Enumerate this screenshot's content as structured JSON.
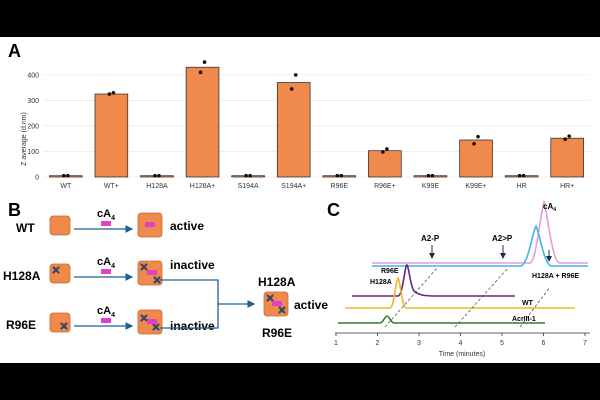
{
  "panels": {
    "a": "A",
    "b": "B",
    "c": "C"
  },
  "colors": {
    "bar": "#ef8a4c",
    "protein": "#ef8a4c",
    "ligand": "#e040c8",
    "arrow": "#1d5f96",
    "mutation": "#2f4a6b"
  },
  "chart_data": {
    "type": "bar",
    "ylabel": "Z average (d.nm)",
    "ylim": [
      0,
      470
    ],
    "yticks": [
      0,
      100,
      200,
      300,
      400
    ],
    "categories": [
      "WT",
      "WT+",
      "H128A",
      "H128A+",
      "S194A",
      "S194A+",
      "R96E",
      "R96E+",
      "K99E",
      "K99E+",
      "HR",
      "HR+"
    ],
    "values": [
      5,
      325,
      5,
      430,
      5,
      370,
      5,
      103,
      5,
      145,
      5,
      152
    ],
    "replicates": [
      [
        5,
        5
      ],
      [
        330,
        325
      ],
      [
        5,
        5
      ],
      [
        450,
        410
      ],
      [
        5,
        5
      ],
      [
        400,
        345
      ],
      [
        5,
        5
      ],
      [
        110,
        98
      ],
      [
        5,
        5
      ],
      [
        158,
        130
      ],
      [
        5,
        5
      ],
      [
        160,
        148
      ]
    ]
  },
  "schematic": {
    "ligand_label": "cA",
    "ligand_sub": "4",
    "rows": [
      {
        "name": "WT",
        "state": "active"
      },
      {
        "name": "H128A",
        "state": "inactive"
      },
      {
        "name": "R96E",
        "state": "inactive"
      }
    ],
    "combined_top": "H128A",
    "combined_bottom": "R96E",
    "combined_state": "active"
  },
  "chromatogram": {
    "xlabel": "Time (minutes)",
    "xticks": [
      1,
      2,
      3,
      4,
      5,
      6,
      7
    ],
    "traces": [
      {
        "label": "cA",
        "sub": "4",
        "color": "#e89ad8"
      },
      {
        "label": "H128A + R96E",
        "color": "#3fb6e8"
      },
      {
        "label": "R96E",
        "color": "#5b2a8c"
      },
      {
        "label": "H128A",
        "color": "#f5b52a"
      },
      {
        "label": "WT",
        "color": "#f5b52a"
      },
      {
        "label": "AcrIII-1",
        "color": "#2e7d32"
      }
    ],
    "markers": [
      "A2-P",
      "A2>P"
    ]
  }
}
